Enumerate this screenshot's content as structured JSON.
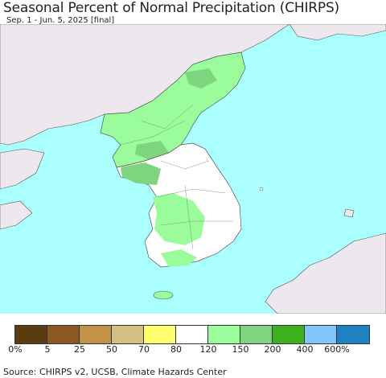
{
  "title": "Seasonal Percent of Normal Precipitation (CHIRPS)",
  "subtitle": "Sep. 1 - Jun. 5, 2025 [final]",
  "source": "Source: CHIRPS v2, UCSB, Climate Hazards Center",
  "colors": {
    "ocean": "#aaffff",
    "land_other": "#ede8ee",
    "normal": "#ffffff",
    "wet_120_150": "#9afc9a",
    "wet_150_200": "#7fd47f",
    "boundary": "#555555"
  },
  "legend": {
    "colors": [
      "#5a3b12",
      "#8b5a23",
      "#c2924a",
      "#d4be83",
      "#ffff6e",
      "#ffffff",
      "#9afc9a",
      "#7fd47f",
      "#3db01e",
      "#7fc6ff",
      "#1e82c0"
    ],
    "labels": [
      "0%",
      "5",
      "25",
      "50",
      "70",
      "80",
      "120",
      "150",
      "200",
      "400",
      "600%"
    ]
  }
}
